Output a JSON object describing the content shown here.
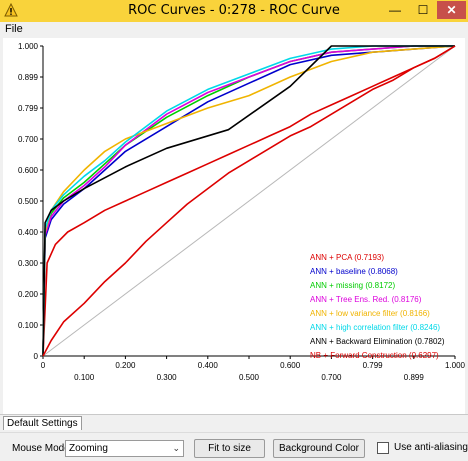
{
  "window": {
    "title": "ROC Curves - 0:278 - ROC Curve",
    "min_glyph": "—",
    "max_glyph": "☐",
    "close_glyph": "✕"
  },
  "menu": {
    "file_label": "File"
  },
  "chart_data": {
    "type": "line",
    "title": "",
    "xlabel": "",
    "ylabel": "",
    "xlim": [
      0,
      1
    ],
    "ylim": [
      0,
      1
    ],
    "x_ticks": [
      "0",
      "0.100",
      "0.200",
      "0.300",
      "0.400",
      "0.500",
      "0.600",
      "0.700",
      "0.799",
      "0.899",
      "1.000"
    ],
    "y_ticks": [
      "0",
      "0.100",
      "0.200",
      "0.300",
      "0.400",
      "0.500",
      "0.600",
      "0.700",
      "0.799",
      "0.899",
      "1.000"
    ],
    "grid": false,
    "legend_position": "bottom-right",
    "diagonal_color": "#b8b8b8",
    "series": [
      {
        "name": "ANN + PCA (0.7193)",
        "color": "#dd0000",
        "x": [
          0,
          0.01,
          0.03,
          0.06,
          0.1,
          0.15,
          0.2,
          0.25,
          0.3,
          0.35,
          0.4,
          0.45,
          0.5,
          0.55,
          0.6,
          0.65,
          0.7,
          0.75,
          0.8,
          0.85,
          0.9,
          0.95,
          1.0
        ],
        "y": [
          0,
          0.3,
          0.36,
          0.4,
          0.43,
          0.47,
          0.5,
          0.53,
          0.56,
          0.59,
          0.62,
          0.65,
          0.68,
          0.71,
          0.74,
          0.78,
          0.81,
          0.84,
          0.87,
          0.9,
          0.93,
          0.96,
          1.0
        ]
      },
      {
        "name": "ANN + baseline (0.8068)",
        "color": "#0000cc",
        "x": [
          0,
          0.005,
          0.02,
          0.05,
          0.1,
          0.15,
          0.2,
          0.3,
          0.4,
          0.5,
          0.6,
          0.7,
          0.8,
          0.9,
          1.0
        ],
        "y": [
          0,
          0.38,
          0.44,
          0.49,
          0.54,
          0.6,
          0.66,
          0.74,
          0.82,
          0.88,
          0.94,
          0.97,
          0.98,
          0.99,
          1.0
        ]
      },
      {
        "name": "ANN + missing (0.8172)",
        "color": "#00cc00",
        "x": [
          0,
          0.005,
          0.02,
          0.05,
          0.1,
          0.15,
          0.2,
          0.3,
          0.4,
          0.5,
          0.6,
          0.7,
          0.8,
          0.9,
          1.0
        ],
        "y": [
          0,
          0.4,
          0.46,
          0.51,
          0.56,
          0.62,
          0.68,
          0.77,
          0.84,
          0.9,
          0.95,
          0.98,
          0.99,
          1.0,
          1.0
        ]
      },
      {
        "name": "ANN + Tree Ens. Red. (0.8176)",
        "color": "#dd00dd",
        "x": [
          0,
          0.005,
          0.02,
          0.05,
          0.1,
          0.15,
          0.2,
          0.3,
          0.4,
          0.5,
          0.6,
          0.7,
          0.8,
          0.9,
          1.0
        ],
        "y": [
          0,
          0.39,
          0.45,
          0.5,
          0.55,
          0.61,
          0.68,
          0.78,
          0.85,
          0.9,
          0.95,
          0.98,
          0.99,
          1.0,
          1.0
        ]
      },
      {
        "name": "ANN + low variance filter (0.8166)",
        "color": "#f0b400",
        "x": [
          0,
          0.005,
          0.02,
          0.05,
          0.1,
          0.15,
          0.2,
          0.3,
          0.4,
          0.5,
          0.6,
          0.7,
          0.8,
          0.9,
          1.0
        ],
        "y": [
          0,
          0.4,
          0.47,
          0.53,
          0.6,
          0.66,
          0.7,
          0.75,
          0.8,
          0.84,
          0.9,
          0.95,
          0.98,
          0.99,
          1.0
        ]
      },
      {
        "name": "ANN + high correlation filter (0.8246)",
        "color": "#00d8e8",
        "x": [
          0,
          0.005,
          0.02,
          0.05,
          0.1,
          0.15,
          0.2,
          0.3,
          0.4,
          0.5,
          0.6,
          0.7,
          0.8,
          0.9,
          1.0
        ],
        "y": [
          0,
          0.41,
          0.47,
          0.52,
          0.58,
          0.63,
          0.69,
          0.79,
          0.86,
          0.91,
          0.96,
          0.99,
          1.0,
          1.0,
          1.0
        ]
      },
      {
        "name": "ANN + Backward Elimination (0.7802)",
        "color": "#000000",
        "x": [
          0,
          0.005,
          0.02,
          0.05,
          0.1,
          0.2,
          0.3,
          0.45,
          0.6,
          0.7,
          0.8,
          0.9,
          1.0
        ],
        "y": [
          0,
          0.43,
          0.47,
          0.5,
          0.54,
          0.61,
          0.67,
          0.73,
          0.87,
          1.0,
          1.0,
          1.0,
          1.0
        ]
      },
      {
        "name": "NB + Forward Construction (0.6297)",
        "color": "#dd0000",
        "x": [
          0,
          0.02,
          0.05,
          0.1,
          0.15,
          0.2,
          0.25,
          0.3,
          0.35,
          0.4,
          0.45,
          0.5,
          0.55,
          0.6,
          0.65,
          0.7,
          0.75,
          0.8,
          0.85,
          0.9,
          0.95,
          1.0
        ],
        "y": [
          0,
          0.05,
          0.11,
          0.17,
          0.24,
          0.3,
          0.37,
          0.43,
          0.49,
          0.54,
          0.59,
          0.63,
          0.67,
          0.71,
          0.74,
          0.78,
          0.82,
          0.86,
          0.89,
          0.93,
          0.96,
          1.0
        ]
      }
    ]
  },
  "tabs": {
    "default_settings": "Default Settings"
  },
  "controls": {
    "mouse_mode_label": "Mouse Mode",
    "mouse_mode_value": "Zooming",
    "fit_to_size": "Fit to size",
    "background_color": "Background Color",
    "anti_aliasing": "Use anti-aliasing",
    "anti_aliasing_checked": false
  }
}
